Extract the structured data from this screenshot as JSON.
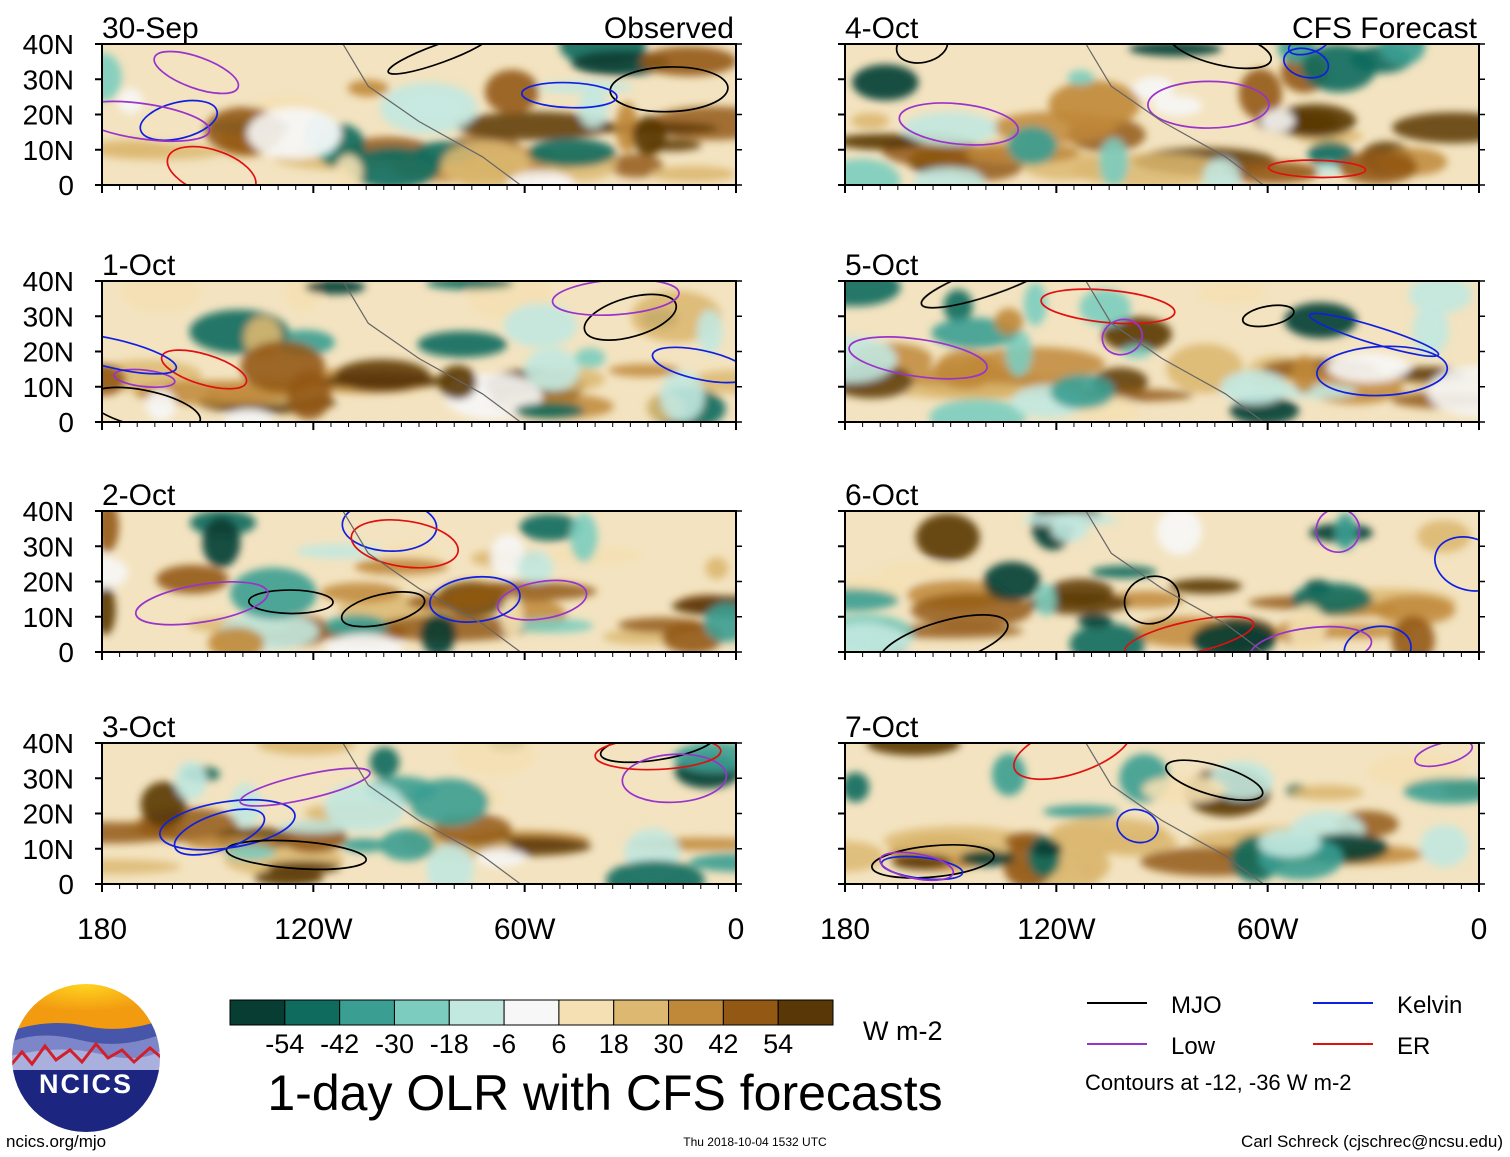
{
  "chart_data": {
    "type": "heatmap",
    "title": "1-day OLR with CFS forecasts",
    "variable": "OLR anomaly",
    "units": "W m-2",
    "x_range": [
      -180,
      0
    ],
    "y_range": [
      0,
      40
    ],
    "x_ticks": [
      "180",
      "120W",
      "60W",
      "0"
    ],
    "y_ticks": [
      "40N",
      "30N",
      "20N",
      "10N",
      "0"
    ],
    "columns": [
      {
        "header": "Observed",
        "panels": [
          "30-Sep",
          "1-Oct",
          "2-Oct",
          "3-Oct"
        ]
      },
      {
        "header": "CFS Forecast",
        "panels": [
          "4-Oct",
          "5-Oct",
          "6-Oct",
          "7-Oct"
        ]
      }
    ],
    "colorbar": {
      "colors": [
        "#073d33",
        "#0f6b5e",
        "#3a9e92",
        "#7ccdbf",
        "#c2e8e0",
        "#f7f7f7",
        "#f4e0b3",
        "#dcb871",
        "#c08839",
        "#935914",
        "#5a3707"
      ],
      "labels": [
        "-54",
        "-42",
        "-30",
        "-18",
        "-6",
        "6",
        "18",
        "30",
        "42",
        "54"
      ],
      "units_label": "W m-2"
    },
    "legend": [
      {
        "name": "MJO",
        "color": "#000000"
      },
      {
        "name": "Kelvin",
        "color": "#1020e0"
      },
      {
        "name": "Low",
        "color": "#9933cc"
      },
      {
        "name": "ER",
        "color": "#e01010"
      }
    ],
    "contour_note": "Contours at -12, -36 W m-2"
  },
  "footer": {
    "logo_text": "NCICS",
    "left": "ncics.org/mjo",
    "center": "Thu 2018-10-04 1532 UTC",
    "right": "Carl Schreck (cjschrec@ncsu.edu)"
  }
}
